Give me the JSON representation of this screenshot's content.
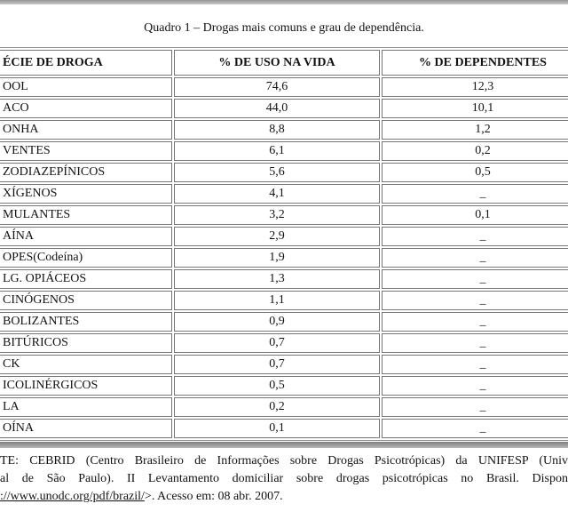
{
  "page": {
    "title": "Quadro 1 – Drogas mais comuns e grau de dependência."
  },
  "table": {
    "headers": [
      "ÉCIE DE DROGA",
      "% DE USO NA VIDA",
      "% DE DEPENDENTES"
    ],
    "no_data_marker": "_",
    "rows": [
      {
        "species": "OOL",
        "life_use": "74,6",
        "dependents": "12,3"
      },
      {
        "species": "ACO",
        "life_use": "44,0",
        "dependents": "10,1"
      },
      {
        "species": "ONHA",
        "life_use": "8,8",
        "dependents": "1,2"
      },
      {
        "species": "VENTES",
        "life_use": "6,1",
        "dependents": "0,2"
      },
      {
        "species": "ZODIAZEPÍNICOS",
        "life_use": "5,6",
        "dependents": "0,5"
      },
      {
        "species": "XÍGENOS",
        "life_use": "4,1",
        "dependents": "_"
      },
      {
        "species": "MULANTES",
        "life_use": "3,2",
        "dependents": "0,1"
      },
      {
        "species": "AÍNA",
        "life_use": "2,9",
        "dependents": "_"
      },
      {
        "species": "OPES(Codeína)",
        "life_use": "1,9",
        "dependents": "_"
      },
      {
        "species": "LG. OPIÁCEOS",
        "life_use": "1,3",
        "dependents": "_"
      },
      {
        "species": "CINÓGENOS",
        "life_use": "1,1",
        "dependents": "_"
      },
      {
        "species": "BOLIZANTES",
        "life_use": "0,9",
        "dependents": "_"
      },
      {
        "species": "BITÚRICOS",
        "life_use": "0,7",
        "dependents": "_"
      },
      {
        "species": "CK",
        "life_use": "0,7",
        "dependents": "_"
      },
      {
        "species": "ICOLINÉRGICOS",
        "life_use": "0,5",
        "dependents": "_"
      },
      {
        "species": "LA",
        "life_use": "0,2",
        "dependents": "_"
      },
      {
        "species": "OÍNA",
        "life_use": "0,1",
        "dependents": "_"
      }
    ]
  },
  "footer": {
    "line1": "TE: CEBRID (Centro Brasileiro de Informações sobre Drogas Psicotrópicas) da UNIFESP (Univ",
    "line2": "al de São Paulo). II Levantamento domiciliar sobre drogas psicotrópicas no Brasil. Dispon",
    "line3_url": "://www.unodc.org/pdf/brazil/",
    "line3_rest": ">.  Acesso em: 08 abr. 2007."
  },
  "colors": {
    "background": "#ffffff",
    "text": "#121212",
    "table_border": "#767676",
    "table_outer_border": "#8f8f8f",
    "topbar_gradient_start": "#969696",
    "topbar_gradient_end": "#c9c9c9",
    "divider_gradient_start": "#7f7f7f",
    "divider_gradient_end": "#b7b7b7"
  }
}
